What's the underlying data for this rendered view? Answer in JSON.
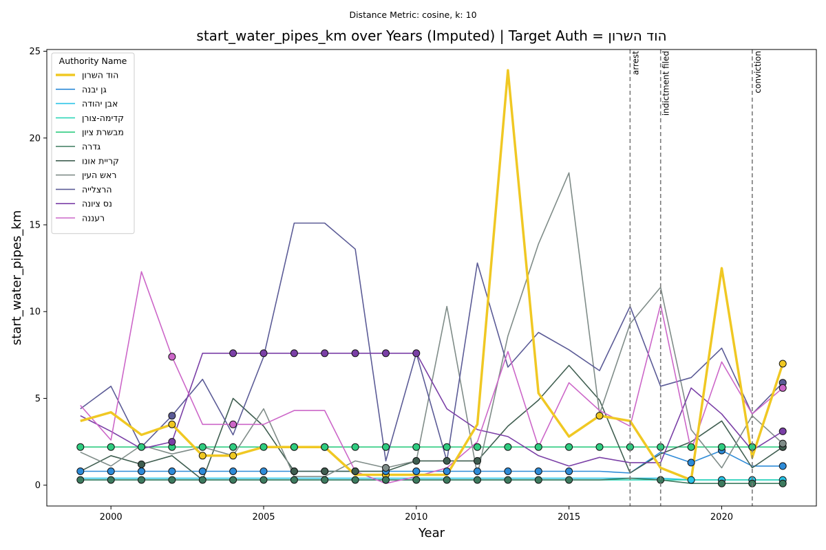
{
  "chart_data": {
    "type": "line",
    "suptitle": "Distance Metric: cosine, k: 10",
    "title": "start_water_pipes_km over Years (Imputed) | Target Auth = הוד השרון",
    "xlabel": "Year",
    "ylabel": "start_water_pipes_km",
    "xlim": [
      1997.9,
      2023.1
    ],
    "ylim": [
      -1.2,
      25.1
    ],
    "x_ticks": [
      2000,
      2005,
      2010,
      2015,
      2020
    ],
    "y_ticks": [
      0,
      5,
      10,
      15,
      20,
      25
    ],
    "grid": false,
    "legend": {
      "title": "Authority Name",
      "placement": "upper-left"
    },
    "events": [
      {
        "year": 2017,
        "label": "arrest"
      },
      {
        "year": 2018,
        "label": "indictment filed"
      },
      {
        "year": 2021,
        "label": "conviction"
      }
    ],
    "x": [
      1999,
      2000,
      2001,
      2002,
      2003,
      2004,
      2005,
      2006,
      2007,
      2008,
      2009,
      2010,
      2011,
      2012,
      2013,
      2014,
      2015,
      2016,
      2017,
      2018,
      2019,
      2020,
      2021,
      2022
    ],
    "series": [
      {
        "name": "הוד השרון",
        "color": "#f0c823",
        "target": true,
        "values": [
          3.7,
          4.2,
          2.9,
          3.5,
          1.7,
          1.7,
          2.2,
          2.2,
          2.2,
          0.6,
          0.6,
          0.6,
          0.6,
          3.5,
          23.9,
          5.3,
          2.8,
          4.0,
          3.7,
          1.0,
          0.3,
          12.5,
          1.6,
          7.0
        ],
        "imputed": [
          0,
          0,
          0,
          1,
          1,
          1,
          0,
          1,
          1,
          0,
          1,
          0,
          0,
          0,
          0,
          0,
          0,
          1,
          0,
          0,
          0,
          0,
          0,
          1
        ]
      },
      {
        "name": "גן יבנה",
        "color": "#2d8bd8",
        "values": [
          0.8,
          0.8,
          0.8,
          0.8,
          0.8,
          0.8,
          0.8,
          0.8,
          0.8,
          0.8,
          0.8,
          0.8,
          0.8,
          0.8,
          0.8,
          0.8,
          0.8,
          0.8,
          0.7,
          1.9,
          1.3,
          2.0,
          1.1,
          1.1
        ],
        "imputed": [
          1,
          1,
          1,
          1,
          1,
          1,
          1,
          1,
          1,
          1,
          1,
          1,
          1,
          1,
          1,
          1,
          1,
          0,
          0,
          0,
          1,
          1,
          0,
          1
        ]
      },
      {
        "name": "אבן יהודה",
        "color": "#29c3e6",
        "values": [
          0.4,
          0.4,
          0.4,
          0.4,
          0.4,
          0.4,
          0.4,
          0.4,
          0.4,
          0.4,
          0.4,
          0.4,
          0.4,
          0.4,
          0.4,
          0.4,
          0.4,
          0.4,
          0.4,
          0.4,
          0.3,
          0.3,
          0.3,
          0.3
        ],
        "imputed": [
          0,
          0,
          0,
          0,
          0,
          0,
          0,
          0,
          0,
          0,
          0,
          0,
          0,
          0,
          0,
          0,
          0,
          0,
          0,
          0,
          1,
          1,
          1,
          1
        ]
      },
      {
        "name": "קדימה-צורן",
        "color": "#2ed6b8",
        "values": [
          0.3,
          0.3,
          0.3,
          0.3,
          0.3,
          0.3,
          0.3,
          0.3,
          0.3,
          0.3,
          0.3,
          0.3,
          0.3,
          0.3,
          0.3,
          0.3,
          0.3,
          0.3,
          0.3,
          0.3,
          0.3,
          0.3,
          0.3,
          0.3
        ],
        "imputed": [
          0,
          0,
          0,
          0,
          0,
          0,
          0,
          0,
          0,
          0,
          0,
          0,
          0,
          0,
          0,
          0,
          0,
          0,
          0,
          0,
          0,
          0,
          0,
          0
        ]
      },
      {
        "name": "מבשרת ציון",
        "color": "#2fcc80",
        "values": [
          2.2,
          2.2,
          2.2,
          2.2,
          2.2,
          2.2,
          2.2,
          2.2,
          2.2,
          2.2,
          2.2,
          2.2,
          2.2,
          2.2,
          2.2,
          2.2,
          2.2,
          2.2,
          2.2,
          2.2,
          2.2,
          2.2,
          2.2,
          2.2
        ],
        "imputed": [
          1,
          1,
          1,
          1,
          1,
          1,
          1,
          1,
          1,
          1,
          1,
          1,
          1,
          1,
          1,
          1,
          1,
          1,
          1,
          1,
          1,
          1,
          1,
          1
        ]
      },
      {
        "name": "גדרה",
        "color": "#3c7a5e",
        "values": [
          0.3,
          0.3,
          0.3,
          0.3,
          0.3,
          0.3,
          0.3,
          0.3,
          0.3,
          0.3,
          0.3,
          0.3,
          0.3,
          0.3,
          0.3,
          0.3,
          0.3,
          0.3,
          0.4,
          0.3,
          0.1,
          0.1,
          0.1,
          0.1
        ],
        "imputed": [
          1,
          1,
          1,
          1,
          1,
          1,
          1,
          1,
          1,
          1,
          1,
          1,
          1,
          1,
          1,
          1,
          1,
          0,
          0,
          1,
          0,
          1,
          1,
          1
        ]
      },
      {
        "name": "קריית אונו",
        "color": "#3f5e50",
        "values": [
          0.8,
          1.7,
          1.2,
          1.7,
          0.3,
          5.0,
          3.4,
          0.8,
          0.8,
          0.8,
          0.8,
          1.4,
          1.4,
          1.4,
          3.4,
          4.9,
          6.9,
          4.9,
          0.7,
          1.8,
          2.5,
          3.7,
          1.0,
          2.2
        ],
        "imputed": [
          0,
          0,
          1,
          0,
          0,
          0,
          0,
          1,
          1,
          1,
          0,
          1,
          1,
          1,
          0,
          0,
          0,
          0,
          0,
          0,
          0,
          0,
          0,
          1
        ]
      },
      {
        "name": "ראש העין",
        "color": "#7f8c88",
        "values": [
          1.9,
          1.1,
          2.3,
          1.8,
          2.2,
          1.7,
          4.4,
          0.5,
          0.5,
          1.4,
          1.0,
          1.4,
          10.3,
          0.6,
          8.6,
          13.9,
          18.0,
          4.1,
          9.3,
          11.4,
          3.2,
          1.0,
          4.0,
          2.4
        ],
        "imputed": [
          0,
          0,
          0,
          0,
          0,
          0,
          0,
          0,
          0,
          0,
          1,
          0,
          0,
          0,
          0,
          0,
          0,
          0,
          0,
          0,
          0,
          0,
          0,
          1
        ]
      },
      {
        "name": "הרצלייה",
        "color": "#5b5b96",
        "values": [
          4.4,
          5.7,
          2.2,
          4.0,
          6.1,
          2.9,
          7.4,
          15.1,
          15.1,
          13.6,
          1.4,
          7.6,
          1.4,
          12.8,
          6.8,
          8.8,
          7.8,
          6.6,
          10.3,
          5.7,
          6.2,
          7.9,
          4.1,
          5.9
        ],
        "imputed": [
          0,
          0,
          0,
          1,
          0,
          0,
          0,
          0,
          0,
          0,
          0,
          0,
          0,
          0,
          0,
          0,
          0,
          0,
          0,
          0,
          0,
          0,
          0,
          1
        ]
      },
      {
        "name": "נס ציונה",
        "color": "#7a3fa6",
        "values": [
          4.0,
          3.1,
          2.1,
          2.5,
          7.6,
          7.6,
          7.6,
          7.6,
          7.6,
          7.6,
          7.6,
          7.6,
          4.4,
          3.2,
          2.8,
          1.7,
          1.1,
          1.6,
          1.3,
          1.3,
          5.6,
          4.1,
          2.0,
          3.1
        ],
        "imputed": [
          0,
          0,
          0,
          1,
          0,
          1,
          1,
          1,
          1,
          1,
          1,
          1,
          0,
          0,
          0,
          0,
          0,
          0,
          0,
          0,
          0,
          0,
          0,
          1
        ]
      },
      {
        "name": "רעננה",
        "color": "#cc66c8",
        "values": [
          4.6,
          2.6,
          12.3,
          7.4,
          3.5,
          3.5,
          3.5,
          4.3,
          4.3,
          0.8,
          0.1,
          0.5,
          1.0,
          2.5,
          7.7,
          2.2,
          5.9,
          4.3,
          3.4,
          10.4,
          2.0,
          7.1,
          4.1,
          5.6
        ],
        "imputed": [
          0,
          0,
          0,
          1,
          0,
          1,
          0,
          0,
          0,
          0,
          0,
          0,
          0,
          0,
          0,
          0,
          0,
          0,
          0,
          0,
          0,
          0,
          0,
          1
        ]
      }
    ]
  }
}
